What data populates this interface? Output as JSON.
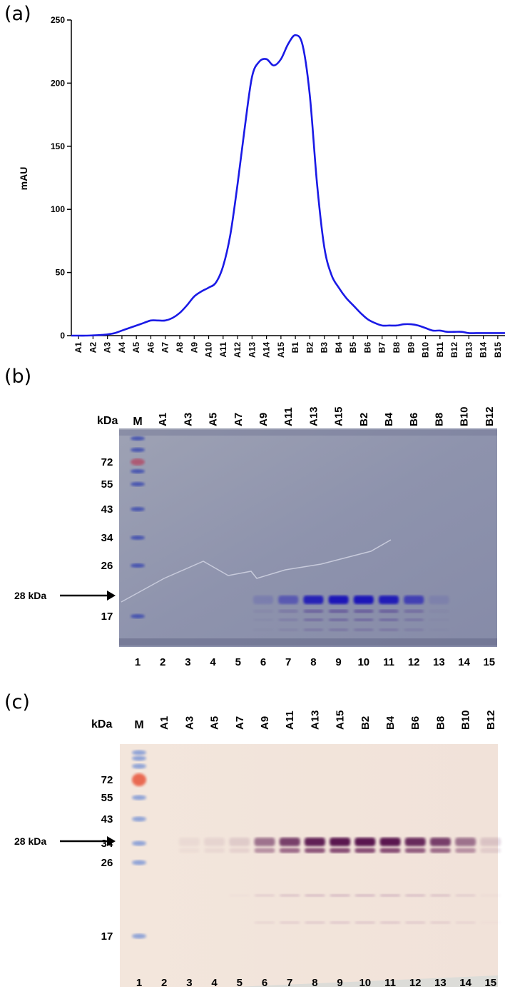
{
  "panels": {
    "a": {
      "label": "(a)"
    },
    "b": {
      "label": "(b)"
    },
    "c": {
      "label": "(c)"
    }
  },
  "chart_data": {
    "type": "line",
    "ylabel": "mAU",
    "xlabel": "",
    "ylim": [
      0,
      250
    ],
    "yticks": [
      0,
      50,
      100,
      150,
      200,
      250
    ],
    "grid": false,
    "categories": [
      "A1",
      "A2",
      "A3",
      "A4",
      "A5",
      "A6",
      "A7",
      "A8",
      "A9",
      "A10",
      "A11",
      "A12",
      "A13",
      "A14",
      "A15",
      "B1",
      "B2",
      "B3",
      "B4",
      "B5",
      "B6",
      "B7",
      "B8",
      "B9",
      "B10",
      "B11",
      "B12",
      "B13",
      "B14",
      "B15"
    ],
    "series": [
      {
        "color": "#1a1ae6",
        "x": [
          0,
          0.5,
          1,
          1.5,
          2,
          2.5,
          3,
          3.5,
          4,
          4.5,
          5,
          5.5,
          6,
          6.5,
          7,
          7.5,
          8,
          8.5,
          9,
          9.5,
          10,
          10.5,
          11,
          11.5,
          12,
          12.5,
          13,
          13.5,
          14,
          14.5,
          15,
          15.5,
          16,
          16.5,
          17,
          17.5,
          18,
          18.5,
          19,
          19.5,
          20,
          20.5,
          21,
          21.5,
          22,
          22.5,
          23,
          23.5,
          24,
          24.5,
          25,
          25.5,
          26,
          26.5,
          27,
          27.5,
          28,
          28.5,
          29,
          29.5,
          30
        ],
        "values": [
          0,
          0,
          0,
          0.2,
          0.5,
          1,
          2,
          4,
          6,
          8,
          10,
          12,
          12,
          12,
          14,
          18,
          24,
          31,
          35,
          38,
          42,
          55,
          80,
          120,
          165,
          205,
          217,
          219,
          214,
          219,
          231,
          238,
          230,
          190,
          120,
          70,
          48,
          38,
          30,
          24,
          18,
          13,
          10,
          8,
          8,
          8,
          9,
          9,
          8,
          6,
          4,
          4,
          3,
          3,
          3,
          2,
          2,
          2,
          2,
          2,
          2
        ]
      }
    ]
  },
  "gel_b": {
    "kda_label": "kDa",
    "lane_top_labels": [
      "M",
      "A1",
      "A3",
      "A5",
      "A7",
      "A9",
      "A11",
      "A13",
      "A15",
      "B2",
      "B4",
      "B6",
      "B8",
      "B10",
      "B12"
    ],
    "lane_numbers": [
      "1",
      "2",
      "3",
      "4",
      "5",
      "6",
      "7",
      "8",
      "9",
      "10",
      "11",
      "12",
      "13",
      "14",
      "15"
    ],
    "marker_labels": [
      "72",
      "55",
      "43",
      "34",
      "26",
      "17"
    ],
    "target_label": "28 kDa",
    "band_intensity": [
      0,
      0,
      0,
      0,
      0,
      0.15,
      0.45,
      0.9,
      1,
      1,
      0.95,
      0.65,
      0.1,
      0,
      0
    ]
  },
  "gel_c": {
    "kda_label": "kDa",
    "lane_top_labels": [
      "M",
      "A1",
      "A3",
      "A5",
      "A7",
      "A9",
      "A11",
      "A13",
      "A15",
      "B2",
      "B4",
      "B6",
      "B8",
      "B10",
      "B12"
    ],
    "lane_numbers": [
      "1",
      "2",
      "3",
      "4",
      "5",
      "6",
      "7",
      "8",
      "9",
      "10",
      "11",
      "12",
      "13",
      "14",
      "15"
    ],
    "marker_labels": [
      "72",
      "55",
      "43",
      "34",
      "26",
      "17"
    ],
    "target_label": "28 kDa",
    "band_intensity": [
      0,
      0,
      0.05,
      0.08,
      0.12,
      0.55,
      0.8,
      0.95,
      1,
      1,
      1,
      0.9,
      0.8,
      0.55,
      0.15
    ]
  }
}
